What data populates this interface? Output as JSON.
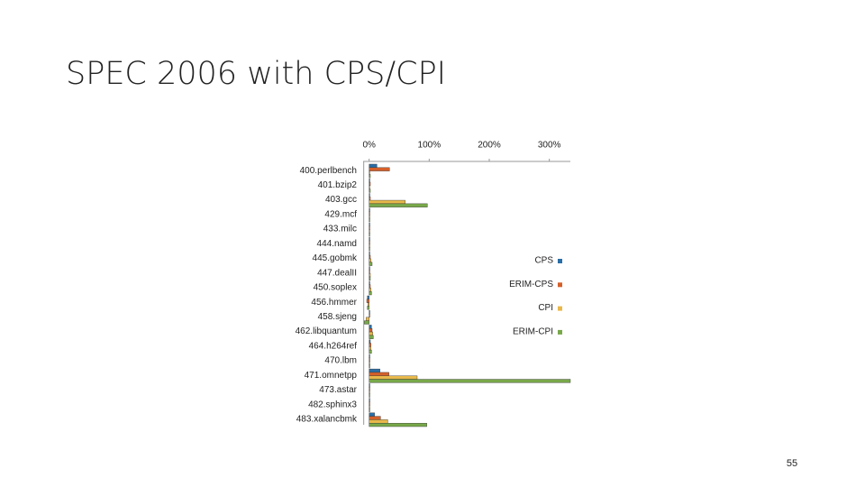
{
  "title": "SPEC 2006 with CPS/CPI",
  "page_number": "55",
  "chart_data": {
    "type": "barh",
    "categories": [
      "400.perlbench",
      "401.bzip2",
      "403.gcc",
      "429.mcf",
      "433.milc",
      "444.namd",
      "445.gobmk",
      "447.dealII",
      "450.soplex",
      "456.hmmer",
      "458.sjeng",
      "462.libquantum",
      "464.h264ref",
      "470.lbm",
      "471.omnetpp",
      "473.astar",
      "482.sphinx3",
      "483.xalancbmk"
    ],
    "series": [
      {
        "name": "CPS",
        "color": "#2a6ea6",
        "values": [
          13,
          1,
          1,
          1,
          1,
          0,
          1,
          1,
          1,
          -3,
          0,
          4,
          2,
          0,
          18,
          1,
          1,
          9
        ]
      },
      {
        "name": "ERIM-CPS",
        "color": "#d4602a",
        "values": [
          34,
          2,
          2,
          1,
          1,
          0,
          2,
          1,
          2,
          -4,
          0,
          5,
          3,
          1,
          33,
          1,
          1,
          19
        ]
      },
      {
        "name": "CPI",
        "color": "#e8b84a",
        "values": [
          1,
          1,
          60,
          1,
          1,
          0,
          3,
          2,
          3,
          -2,
          -5,
          6,
          3,
          0,
          80,
          1,
          1,
          31
        ]
      },
      {
        "name": "ERIM-CPI",
        "color": "#78a84a",
        "values": [
          2,
          2,
          97,
          1,
          1,
          1,
          5,
          2,
          4,
          -3,
          -8,
          7,
          4,
          1,
          335,
          1,
          1,
          96
        ]
      }
    ],
    "xlim": [
      -10,
      335
    ],
    "xticks": [
      {
        "value": 0,
        "label": "0%"
      },
      {
        "value": 100,
        "label": "100%"
      },
      {
        "value": 200,
        "label": "200%"
      },
      {
        "value": 300,
        "label": "300%"
      }
    ],
    "legend": "right"
  }
}
